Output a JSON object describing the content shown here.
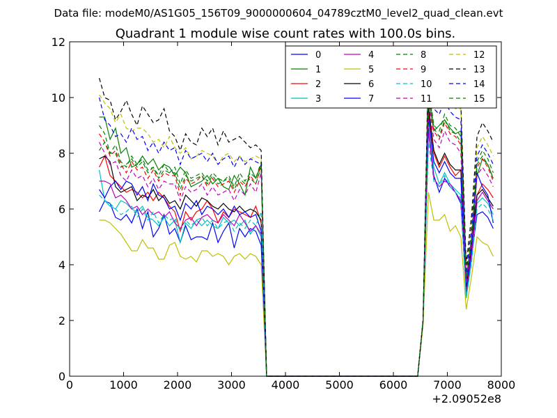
{
  "figure": {
    "suptitle": "Data file: modeM0/AS1G05_156T09_9000000604_04789cztM0_level2_quad_clean.evt"
  },
  "chart_data": {
    "type": "line",
    "title": "Quadrant 1 module wise count rates with 100.0s bins.",
    "xlabel": "",
    "ylabel": "",
    "x_offset_label": "+2.09052e8",
    "xlim": [
      0,
      8000
    ],
    "ylim": [
      0,
      12
    ],
    "xticks": [
      0,
      1000,
      2000,
      3000,
      4000,
      5000,
      6000,
      7000,
      8000
    ],
    "yticks": [
      0,
      2,
      4,
      6,
      8,
      10,
      12
    ],
    "legend_position": "top-right",
    "legend_columns": 4,
    "grid": false,
    "gap_x_values": [
      3650,
      3750,
      3850,
      3950,
      4050,
      4150,
      4250,
      4350,
      4450,
      4550,
      4650,
      4750,
      4850,
      4950,
      5050,
      5150,
      5250,
      5350,
      5450,
      5550,
      5650,
      5750,
      5850,
      5950,
      6050,
      6150,
      6250,
      6350,
      6450
    ],
    "segment1_x": [
      550,
      650,
      750,
      850,
      950,
      1050,
      1150,
      1250,
      1350,
      1450,
      1550,
      1650,
      1750,
      1850,
      1950,
      2050,
      2150,
      2250,
      2350,
      2450,
      2550,
      2650,
      2750,
      2850,
      2950,
      3050,
      3150,
      3250,
      3350,
      3450,
      3550
    ],
    "segment2_x": [
      6550,
      6650,
      6750,
      6850,
      6950,
      7050,
      7150,
      7250,
      7350,
      7450,
      7550,
      7650,
      7750,
      7850
    ],
    "series": [
      {
        "name": "0",
        "color": "#0000ff",
        "dash": "solid",
        "seg1": [
          5.9,
          6.3,
          6.2,
          5.7,
          5.6,
          5.8,
          5.5,
          6.0,
          5.3,
          5.9,
          5.0,
          5.3,
          5.8,
          5.1,
          5.3,
          4.8,
          5.4,
          4.9,
          5.0,
          5.0,
          4.9,
          5.5,
          4.8,
          5.2,
          5.5,
          4.6,
          5.3,
          5.0,
          5.3,
          5.2,
          4.7
        ],
        "seg2": [
          2.0,
          8.9,
          7.2,
          6.6,
          7.1,
          6.8,
          6.6,
          6.2,
          3.0,
          4.3,
          5.8,
          5.9,
          5.7,
          5.3
        ]
      },
      {
        "name": "1",
        "color": "#008000",
        "dash": "solid",
        "seg1": [
          9.3,
          9.3,
          8.5,
          8.9,
          8.0,
          8.2,
          7.5,
          7.6,
          7.9,
          7.6,
          7.8,
          7.4,
          7.6,
          7.5,
          7.2,
          7.5,
          7.3,
          6.8,
          6.9,
          7.0,
          7.2,
          6.9,
          7.1,
          6.8,
          6.7,
          7.2,
          6.9,
          6.5,
          7.5,
          7.1,
          7.6
        ],
        "seg2": [
          2.0,
          10.0,
          8.8,
          9.0,
          9.2,
          8.9,
          8.7,
          8.8,
          3.2,
          4.7,
          7.2,
          7.8,
          7.6,
          7.1
        ]
      },
      {
        "name": "2",
        "color": "#ff0000",
        "dash": "solid",
        "seg1": [
          7.5,
          7.9,
          7.2,
          7.0,
          6.8,
          6.6,
          6.7,
          6.6,
          6.4,
          6.6,
          6.3,
          6.6,
          6.4,
          6.1,
          5.9,
          5.2,
          5.9,
          5.6,
          5.9,
          6.0,
          6.3,
          6.0,
          5.5,
          5.9,
          5.7,
          6.0,
          5.9,
          5.8,
          5.7,
          6.1,
          5.5
        ],
        "seg2": [
          2.0,
          9.5,
          8.0,
          7.5,
          7.9,
          7.5,
          7.2,
          7.4,
          3.1,
          4.5,
          6.5,
          6.9,
          6.7,
          6.4
        ]
      },
      {
        "name": "3",
        "color": "#00bfbf",
        "dash": "solid",
        "seg1": [
          7.4,
          6.3,
          6.1,
          6.0,
          6.3,
          6.2,
          6.0,
          5.9,
          6.1,
          5.7,
          5.6,
          5.4,
          5.7,
          5.4,
          5.6,
          4.8,
          5.5,
          5.3,
          5.6,
          5.4,
          5.6,
          5.4,
          5.3,
          5.7,
          5.5,
          5.6,
          5.4,
          5.6,
          5.1,
          5.4,
          5.0
        ],
        "seg2": [
          2.0,
          9.3,
          7.5,
          6.9,
          7.3,
          6.9,
          6.7,
          6.5,
          2.8,
          4.2,
          6.2,
          6.4,
          6.2,
          5.8
        ]
      },
      {
        "name": "4",
        "color": "#bf00bf",
        "dash": "solid",
        "seg1": [
          7.0,
          7.0,
          6.9,
          6.4,
          6.5,
          6.3,
          6.0,
          6.1,
          5.8,
          6.0,
          5.8,
          5.9,
          5.7,
          5.9,
          5.5,
          5.3,
          5.6,
          5.7,
          5.4,
          5.7,
          5.8,
          5.6,
          5.5,
          5.8,
          5.6,
          5.4,
          5.8,
          5.5,
          5.2,
          5.4,
          5.1
        ],
        "seg2": [
          2.0,
          8.8,
          7.1,
          6.8,
          7.0,
          6.9,
          6.6,
          6.3,
          3.3,
          4.4,
          6.3,
          6.6,
          6.3,
          6.0
        ]
      },
      {
        "name": "5",
        "color": "#bfbf00",
        "dash": "solid",
        "seg1": [
          5.6,
          5.6,
          5.5,
          5.3,
          5.1,
          4.8,
          4.5,
          4.5,
          4.9,
          4.6,
          4.6,
          4.2,
          4.2,
          4.7,
          4.8,
          4.3,
          4.2,
          4.3,
          4.1,
          4.5,
          4.5,
          4.3,
          4.4,
          4.3,
          4.0,
          4.3,
          4.4,
          4.2,
          4.4,
          4.3,
          4.0
        ],
        "seg2": [
          1.8,
          6.6,
          5.6,
          5.6,
          5.8,
          5.2,
          5.4,
          5.0,
          2.4,
          3.6,
          5.0,
          4.8,
          4.7,
          4.3
        ]
      },
      {
        "name": "6",
        "color": "#000000",
        "dash": "solid",
        "seg1": [
          7.8,
          7.9,
          7.7,
          6.8,
          6.6,
          6.7,
          6.8,
          6.3,
          6.5,
          6.4,
          6.7,
          6.3,
          6.5,
          6.2,
          6.3,
          6.0,
          6.5,
          6.3,
          6.1,
          6.4,
          6.3,
          6.1,
          6.0,
          6.2,
          6.0,
          5.9,
          6.1,
          5.9,
          6.0,
          5.9,
          5.6
        ],
        "seg2": [
          2.0,
          9.7,
          8.1,
          7.6,
          8.0,
          7.6,
          7.4,
          7.4,
          3.4,
          4.8,
          6.5,
          6.7,
          6.4,
          6.1
        ]
      },
      {
        "name": "7",
        "color": "#0000ff",
        "dash": "solid",
        "seg1": [
          6.7,
          6.4,
          6.8,
          7.0,
          6.7,
          7.0,
          6.9,
          6.5,
          6.8,
          6.3,
          6.9,
          6.5,
          6.4,
          6.0,
          6.1,
          5.6,
          6.2,
          6.0,
          6.3,
          5.8,
          6.1,
          6.0,
          5.8,
          6.0,
          5.7,
          6.1,
          5.8,
          5.9,
          5.7,
          5.8,
          5.2
        ],
        "seg2": [
          2.0,
          9.3,
          7.7,
          7.3,
          7.7,
          7.3,
          7.1,
          7.1,
          3.2,
          4.6,
          7.3,
          6.8,
          6.5,
          5.5
        ]
      },
      {
        "name": "8",
        "color": "#008000",
        "dash": "dashed",
        "seg1": [
          9.0,
          8.7,
          8.0,
          8.3,
          7.7,
          7.5,
          7.9,
          7.6,
          7.8,
          7.4,
          7.5,
          7.2,
          7.6,
          7.3,
          7.5,
          6.9,
          7.4,
          7.1,
          7.2,
          7.3,
          7.0,
          7.3,
          7.1,
          7.0,
          7.2,
          6.8,
          7.3,
          7.0,
          7.3,
          7.1,
          7.7
        ],
        "seg2": [
          2.0,
          10.5,
          9.0,
          8.8,
          9.4,
          9.0,
          8.9,
          8.6,
          3.5,
          5.0,
          7.7,
          8.1,
          7.8,
          7.3
        ]
      },
      {
        "name": "9",
        "color": "#ff0000",
        "dash": "dashed",
        "seg1": [
          8.7,
          8.4,
          7.9,
          8.1,
          7.6,
          7.3,
          7.7,
          7.4,
          7.5,
          7.1,
          7.4,
          7.0,
          7.3,
          7.2,
          7.2,
          6.5,
          7.1,
          6.9,
          7.0,
          7.2,
          6.8,
          7.1,
          6.8,
          6.9,
          7.0,
          6.6,
          7.0,
          6.8,
          7.2,
          6.9,
          7.6
        ],
        "seg2": [
          2.0,
          10.2,
          8.8,
          8.5,
          9.1,
          8.7,
          8.6,
          8.3,
          3.4,
          4.9,
          7.5,
          7.8,
          7.5,
          7.0
        ]
      },
      {
        "name": "10",
        "color": "#00bfbf",
        "dash": "dashed",
        "seg1": [
          6.5,
          6.3,
          6.2,
          6.0,
          5.8,
          5.9,
          6.1,
          5.7,
          6.0,
          5.6,
          5.9,
          5.5,
          5.8,
          5.6,
          5.7,
          5.2,
          5.6,
          5.4,
          5.6,
          5.7,
          5.4,
          5.6,
          5.3,
          5.5,
          5.6,
          5.2,
          5.5,
          5.3,
          5.6,
          5.4,
          5.9
        ],
        "seg2": [
          2.0,
          8.4,
          7.0,
          6.8,
          7.2,
          6.8,
          6.6,
          6.4,
          2.8,
          4.1,
          6.0,
          6.2,
          6.0,
          5.6
        ]
      },
      {
        "name": "11",
        "color": "#bf00bf",
        "dash": "dashed",
        "seg1": [
          8.4,
          8.0,
          7.6,
          7.7,
          7.2,
          7.0,
          7.4,
          7.1,
          7.2,
          6.8,
          7.1,
          6.7,
          7.0,
          6.9,
          6.9,
          6.3,
          6.8,
          6.6,
          6.7,
          6.9,
          6.5,
          6.8,
          6.5,
          6.6,
          6.7,
          6.3,
          6.7,
          6.5,
          6.9,
          6.6,
          7.3
        ],
        "seg2": [
          2.0,
          9.9,
          8.5,
          8.2,
          8.8,
          8.4,
          8.3,
          8.0,
          3.3,
          4.8,
          7.2,
          7.5,
          7.2,
          6.8
        ]
      },
      {
        "name": "12",
        "color": "#bfbf00",
        "dash": "dashed",
        "seg1": [
          10.1,
          9.8,
          9.6,
          9.1,
          9.4,
          8.9,
          8.8,
          8.9,
          8.9,
          8.7,
          8.4,
          8.5,
          8.2,
          8.6,
          8.2,
          8.0,
          8.2,
          7.8,
          7.9,
          8.1,
          8.0,
          7.9,
          7.6,
          7.9,
          8.0,
          7.7,
          7.9,
          7.7,
          7.8,
          7.9,
          7.8
        ],
        "seg2": [
          2.0,
          11.5,
          10.0,
          9.8,
          10.3,
          9.8,
          9.6,
          9.6,
          3.8,
          5.5,
          8.2,
          8.6,
          8.3,
          7.9
        ]
      },
      {
        "name": "13",
        "color": "#000000",
        "dash": "dashed",
        "seg1": [
          10.7,
          10.0,
          9.9,
          9.2,
          9.5,
          9.9,
          9.4,
          9.0,
          9.7,
          9.4,
          9.1,
          9.2,
          9.6,
          8.8,
          8.6,
          8.1,
          8.7,
          8.4,
          8.3,
          8.9,
          8.6,
          8.9,
          8.3,
          8.8,
          8.4,
          8.5,
          8.6,
          8.4,
          8.2,
          8.3,
          8.1
        ],
        "seg2": [
          2.0,
          11.6,
          10.4,
          10.1,
          10.8,
          10.2,
          9.9,
          9.8,
          4.0,
          5.8,
          8.6,
          9.1,
          8.8,
          8.4
        ]
      },
      {
        "name": "14",
        "color": "#0000ff",
        "dash": "dashed",
        "seg1": [
          10.0,
          9.2,
          9.0,
          8.6,
          8.7,
          8.4,
          8.9,
          8.5,
          8.6,
          8.1,
          8.4,
          8.0,
          8.4,
          8.1,
          8.2,
          7.6,
          8.1,
          7.8,
          7.9,
          8.0,
          7.7,
          8.0,
          7.6,
          7.8,
          7.9,
          7.5,
          7.9,
          7.6,
          7.8,
          7.7,
          7.6
        ],
        "seg2": [
          2.0,
          11.0,
          9.6,
          9.4,
          9.9,
          9.5,
          9.3,
          9.2,
          3.7,
          5.3,
          7.9,
          8.3,
          8.0,
          7.6
        ]
      },
      {
        "name": "15",
        "color": "#008000",
        "dash": "dashed",
        "seg1": [
          8.1,
          8.4,
          8.0,
          8.0,
          7.5,
          7.6,
          7.8,
          7.5,
          7.7,
          7.3,
          7.5,
          7.1,
          7.4,
          7.3,
          7.3,
          6.7,
          7.2,
          7.0,
          7.1,
          7.2,
          6.9,
          7.2,
          6.9,
          7.0,
          7.1,
          6.7,
          7.1,
          6.9,
          7.1,
          6.9,
          7.5
        ],
        "seg2": [
          2.0,
          10.3,
          8.9,
          8.6,
          9.2,
          8.8,
          8.7,
          8.4,
          3.5,
          5.0,
          7.6,
          7.9,
          7.6,
          7.1
        ]
      }
    ]
  }
}
